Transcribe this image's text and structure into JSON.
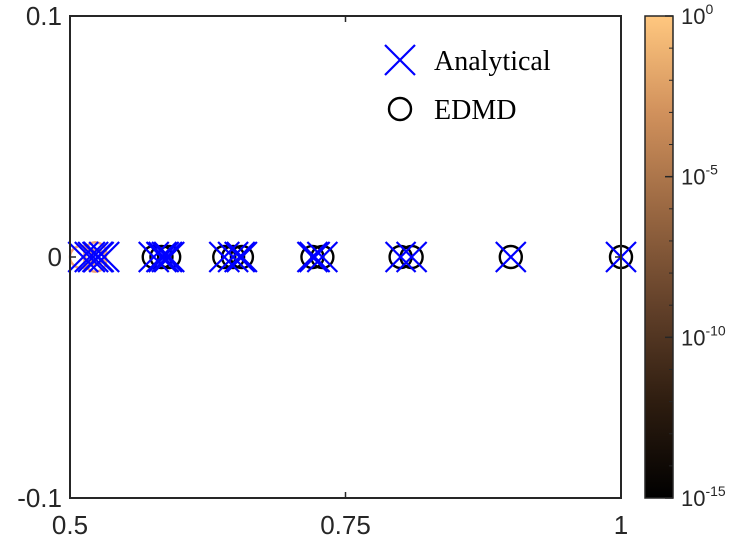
{
  "chart_data": {
    "type": "scatter",
    "title": "",
    "xlabel": "",
    "ylabel": "",
    "xlim": [
      0.5,
      1
    ],
    "ylim": [
      -0.1,
      0.1
    ],
    "x_ticks": [
      {
        "value": 0.5,
        "label": "0.5"
      },
      {
        "value": 0.75,
        "label": "0.75"
      },
      {
        "value": 1,
        "label": "1"
      }
    ],
    "y_ticks": [
      {
        "value": 0.1,
        "label": "0.1"
      },
      {
        "value": 0,
        "label": "0"
      },
      {
        "value": -0.1,
        "label": "-0.1"
      }
    ],
    "legend_position": "top-right",
    "series": [
      {
        "name": "Analytical",
        "marker": "x",
        "color": "#0000ff",
        "points": [
          {
            "x": 1.0,
            "y": 0
          },
          {
            "x": 0.9,
            "y": 0
          },
          {
            "x": 0.81,
            "y": 0
          },
          {
            "x": 0.8,
            "y": 0
          },
          {
            "x": 0.729,
            "y": 0
          },
          {
            "x": 0.72,
            "y": 0
          },
          {
            "x": 0.722,
            "y": 0
          },
          {
            "x": 0.656,
            "y": 0
          },
          {
            "x": 0.648,
            "y": 0
          },
          {
            "x": 0.64,
            "y": 0
          },
          {
            "x": 0.654,
            "y": 0
          },
          {
            "x": 0.59,
            "y": 0
          },
          {
            "x": 0.583,
            "y": 0
          },
          {
            "x": 0.576,
            "y": 0
          },
          {
            "x": 0.585,
            "y": 0
          },
          {
            "x": 0.588,
            "y": 0
          },
          {
            "x": 0.531,
            "y": 0
          },
          {
            "x": 0.525,
            "y": 0
          },
          {
            "x": 0.518,
            "y": 0
          },
          {
            "x": 0.512,
            "y": 0
          },
          {
            "x": 0.526,
            "y": 0
          },
          {
            "x": 0.521,
            "y": 0
          }
        ]
      },
      {
        "name": "EDMD",
        "marker": "o",
        "color_by": "colorbar",
        "points": [
          {
            "x": 1.0,
            "y": 0,
            "c": 1e-15
          },
          {
            "x": 0.9,
            "y": 0,
            "c": 1e-15
          },
          {
            "x": 0.81,
            "y": 0,
            "c": 1e-15
          },
          {
            "x": 0.8,
            "y": 0,
            "c": 1e-15
          },
          {
            "x": 0.729,
            "y": 0,
            "c": 1e-15
          },
          {
            "x": 0.72,
            "y": 0,
            "c": 1e-15
          },
          {
            "x": 0.656,
            "y": 0,
            "c": 1e-15
          },
          {
            "x": 0.648,
            "y": 0,
            "c": 1e-15
          },
          {
            "x": 0.64,
            "y": 0,
            "c": 1e-15
          },
          {
            "x": 0.59,
            "y": 0,
            "c": 1e-15
          },
          {
            "x": 0.583,
            "y": 0,
            "c": 1e-15
          },
          {
            "x": 0.576,
            "y": 0,
            "c": 1e-15
          },
          {
            "x": 0.51,
            "y": 0,
            "c": 0.5
          },
          {
            "x": 0.523,
            "y": 0.0015,
            "c": 0.5
          },
          {
            "x": 0.523,
            "y": -0.0015,
            "c": 0.5
          }
        ]
      }
    ],
    "colorbar": {
      "scale": "log",
      "range": [
        1e-15,
        1
      ],
      "colormap": [
        "#000000",
        "#2e1d10",
        "#63412a",
        "#9a6842",
        "#d1915c",
        "#ffc77f"
      ],
      "ticks": [
        {
          "value": 1,
          "base": "10",
          "exp": "0"
        },
        {
          "value": 1e-05,
          "base": "10",
          "exp": "-5"
        },
        {
          "value": 1e-10,
          "base": "10",
          "exp": "-10"
        },
        {
          "value": 1e-15,
          "base": "10",
          "exp": "-15"
        }
      ]
    }
  }
}
